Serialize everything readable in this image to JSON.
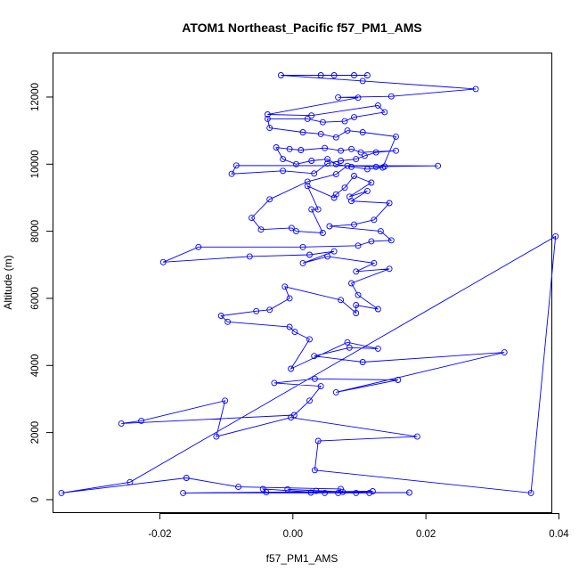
{
  "chart_data": {
    "type": "line",
    "title": "ATOM1 Northeast_Pacific f57_PM1_AMS",
    "xlabel": "f57_PM1_AMS",
    "ylabel": "Altitude (m)",
    "xlim": [
      -0.036,
      0.039
    ],
    "ylim": [
      -400,
      13300
    ],
    "x_ticks": [
      -0.02,
      0.0,
      0.02,
      0.04
    ],
    "x_tick_labels": [
      "-0.02",
      "0.00",
      "0.02",
      "0.04"
    ],
    "y_ticks": [
      0,
      2000,
      4000,
      6000,
      8000,
      10000,
      12000
    ],
    "y_tick_labels": [
      "0",
      "2000",
      "4000",
      "6000",
      "8000",
      "10000",
      "12000"
    ],
    "grid": false,
    "legend": "none",
    "colors": {
      "series": "#0000ff",
      "axis": "#000000",
      "background": "#ffffff"
    },
    "series": [
      {
        "marker": "open-circle",
        "points": [
          [
            0.0048,
            200
          ],
          [
            -0.0045,
            320
          ],
          [
            -0.004,
            220
          ],
          [
            0.0115,
            200
          ],
          [
            -0.0008,
            310
          ],
          [
            0.0035,
            260
          ],
          [
            0.0075,
            230
          ],
          [
            0.0095,
            200
          ],
          [
            0.0027,
            210
          ],
          [
            0.0175,
            210
          ],
          [
            -0.0165,
            200
          ],
          [
            0.012,
            250
          ],
          [
            0.0068,
            200
          ],
          [
            0.0072,
            320
          ],
          [
            -0.0082,
            380
          ],
          [
            -0.016,
            650
          ],
          [
            -0.0348,
            200
          ],
          [
            -0.0245,
            520
          ],
          [
            0.0395,
            7850
          ],
          [
            0.0358,
            200
          ],
          [
            0.0033,
            880
          ],
          [
            0.0038,
            1750
          ],
          [
            0.0187,
            1880
          ],
          [
            -0.0003,
            2450
          ],
          [
            -0.0115,
            1880
          ],
          [
            -0.0102,
            2950
          ],
          [
            -0.0228,
            2350
          ],
          [
            -0.0258,
            2270
          ],
          [
            0.0002,
            2520
          ],
          [
            0.0025,
            2950
          ],
          [
            0.0042,
            3380
          ],
          [
            -0.0028,
            3480
          ],
          [
            0.0033,
            3600
          ],
          [
            0.0158,
            3570
          ],
          [
            0.0065,
            3200
          ],
          [
            0.0318,
            4390
          ],
          [
            0.0105,
            4100
          ],
          [
            0.0032,
            4280
          ],
          [
            0.0085,
            4530
          ],
          [
            0.0128,
            4500
          ],
          [
            0.0082,
            4690
          ],
          [
            -0.0003,
            3900
          ],
          [
            0.0025,
            4780
          ],
          [
            0.0003,
            5000
          ],
          [
            -0.0005,
            5150
          ],
          [
            -0.0098,
            5300
          ],
          [
            -0.0108,
            5480
          ],
          [
            -0.0055,
            5620
          ],
          [
            -0.0035,
            5660
          ],
          [
            -0.0005,
            6000
          ],
          [
            -0.0012,
            6350
          ],
          [
            0.0072,
            5950
          ],
          [
            0.0095,
            5560
          ],
          [
            0.0095,
            5800
          ],
          [
            0.0128,
            5680
          ],
          [
            0.0098,
            6100
          ],
          [
            0.0088,
            6450
          ],
          [
            0.0145,
            6880
          ],
          [
            0.0095,
            6800
          ],
          [
            0.0122,
            7050
          ],
          [
            0.0052,
            7250
          ],
          [
            0.0015,
            7050
          ],
          [
            0.0062,
            7400
          ],
          [
            0.0025,
            7300
          ],
          [
            -0.0065,
            7250
          ],
          [
            -0.0195,
            7080
          ],
          [
            -0.0142,
            7530
          ],
          [
            0.0015,
            7530
          ],
          [
            0.0098,
            7570
          ],
          [
            0.0118,
            7700
          ],
          [
            0.0148,
            7730
          ],
          [
            0.0132,
            8000
          ],
          [
            0.0055,
            8150
          ],
          [
            0.0092,
            8200
          ],
          [
            0.0122,
            8340
          ],
          [
            0.0145,
            8840
          ],
          [
            0.0088,
            8900
          ],
          [
            0.0112,
            9200
          ],
          [
            0.0085,
            9030
          ],
          [
            0.0118,
            9450
          ],
          [
            0.0092,
            9650
          ],
          [
            0.0078,
            9300
          ],
          [
            0.0065,
            9100
          ],
          [
            0.0062,
            9000
          ],
          [
            0.0022,
            9350
          ],
          [
            0.0038,
            8650
          ],
          [
            0.0028,
            8650
          ],
          [
            0.0045,
            7950
          ],
          [
            0.0005,
            8000
          ],
          [
            -0.0002,
            8100
          ],
          [
            -0.0048,
            8050
          ],
          [
            -0.0062,
            8400
          ],
          [
            -0.0035,
            8950
          ],
          [
            0.0022,
            9480
          ],
          [
            0.0065,
            9700
          ],
          [
            0.0082,
            9950
          ],
          [
            0.0125,
            9920
          ],
          [
            0.0138,
            9930
          ],
          [
            0.0218,
            9950
          ],
          [
            -0.0085,
            9960
          ],
          [
            -0.0092,
            9710
          ],
          [
            -0.0015,
            9800
          ],
          [
            0.0032,
            9720
          ],
          [
            0.0052,
            10020
          ],
          [
            0.0072,
            10100
          ],
          [
            0.0095,
            10150
          ],
          [
            0.0108,
            10250
          ],
          [
            0.0125,
            10350
          ],
          [
            0.0155,
            10400
          ],
          [
            0.0102,
            10350
          ],
          [
            0.0088,
            10450
          ],
          [
            0.0072,
            10400
          ],
          [
            0.0048,
            10480
          ],
          [
            0.0012,
            10420
          ],
          [
            -0.0005,
            10450
          ],
          [
            -0.0025,
            10500
          ],
          [
            -0.0015,
            10150
          ],
          [
            0.0005,
            10000
          ],
          [
            0.0028,
            10100
          ],
          [
            0.0052,
            10150
          ],
          [
            0.0065,
            10000
          ],
          [
            0.0088,
            9920
          ],
          [
            0.0112,
            9850
          ],
          [
            0.0135,
            9900
          ],
          [
            0.0155,
            10820
          ],
          [
            0.0105,
            10950
          ],
          [
            0.0082,
            11000
          ],
          [
            0.0065,
            10800
          ],
          [
            0.0042,
            10900
          ],
          [
            0.0015,
            10950
          ],
          [
            -0.0035,
            11080
          ],
          [
            -0.0038,
            11350
          ],
          [
            0.0022,
            11350
          ],
          [
            0.0045,
            11250
          ],
          [
            0.0078,
            11280
          ],
          [
            0.0092,
            11400
          ],
          [
            0.0138,
            11550
          ],
          [
            0.0128,
            11750
          ],
          [
            0.0028,
            11450
          ],
          [
            -0.0038,
            11480
          ],
          [
            0.0098,
            11980
          ],
          [
            0.0068,
            11990
          ],
          [
            0.0148,
            12020
          ],
          [
            0.0275,
            12240
          ],
          [
            0.0105,
            12480
          ],
          [
            -0.0018,
            12650
          ],
          [
            0.0042,
            12650
          ],
          [
            0.0062,
            12650
          ],
          [
            0.0092,
            12650
          ],
          [
            0.0112,
            12650
          ]
        ]
      }
    ]
  }
}
